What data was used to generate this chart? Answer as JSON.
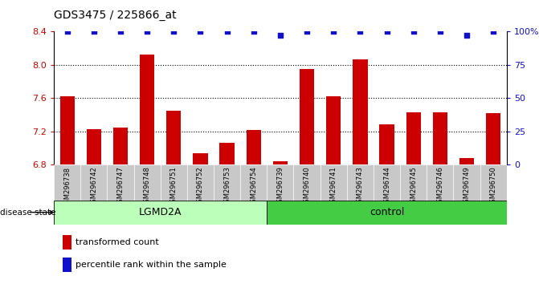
{
  "title": "GDS3475 / 225866_at",
  "samples": [
    "GSM296738",
    "GSM296742",
    "GSM296747",
    "GSM296748",
    "GSM296751",
    "GSM296752",
    "GSM296753",
    "GSM296754",
    "GSM296739",
    "GSM296740",
    "GSM296741",
    "GSM296743",
    "GSM296744",
    "GSM296745",
    "GSM296746",
    "GSM296749",
    "GSM296750"
  ],
  "bar_values": [
    7.62,
    7.23,
    7.25,
    8.12,
    7.45,
    6.94,
    7.06,
    7.22,
    6.84,
    7.95,
    7.62,
    8.06,
    7.28,
    7.43,
    7.43,
    6.88,
    7.42
  ],
  "percentile_pct": [
    100,
    100,
    100,
    100,
    100,
    100,
    100,
    100,
    97,
    100,
    100,
    100,
    100,
    100,
    100,
    97,
    100
  ],
  "groups": [
    "LGMD2A",
    "LGMD2A",
    "LGMD2A",
    "LGMD2A",
    "LGMD2A",
    "LGMD2A",
    "LGMD2A",
    "LGMD2A",
    "control",
    "control",
    "control",
    "control",
    "control",
    "control",
    "control",
    "control",
    "control"
  ],
  "ylim_left": [
    6.8,
    8.4
  ],
  "ylim_right": [
    0,
    100
  ],
  "yticks_left": [
    6.8,
    7.2,
    7.6,
    8.0,
    8.4
  ],
  "yticks_right": [
    0,
    25,
    50,
    75,
    100
  ],
  "bar_color": "#cc0000",
  "percentile_color": "#1111cc",
  "lgmd2a_color": "#bbffbb",
  "control_color": "#44cc44",
  "sample_bg_color": "#c8c8c8",
  "label_bar": "transformed count",
  "label_pct": "percentile rank within the sample",
  "disease_state_label": "disease state",
  "lgmd2a_label": "LGMD2A",
  "control_label": "control",
  "grid_yticks": [
    7.2,
    7.6,
    8.0
  ]
}
